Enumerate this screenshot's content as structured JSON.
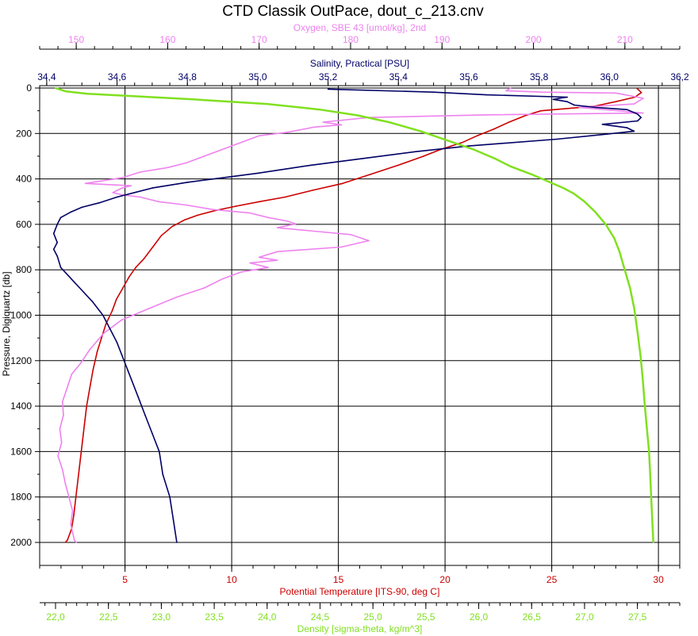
{
  "chart_data": {
    "type": "line",
    "title": "CTD Classik OutPace, dout_c_213.cnv",
    "grid": true,
    "colors": {
      "oxygen": "#ee82ee",
      "salinity": "#000066",
      "temperature": "#cc0000",
      "density": "#80e020"
    },
    "axes": {
      "y": {
        "label": "Pressure, Digiquartz [db]",
        "range": [
          0,
          2100
        ],
        "ticks": [
          0,
          200,
          400,
          600,
          800,
          1000,
          1200,
          1400,
          1600,
          1800,
          2000
        ],
        "reversed": true
      },
      "oxygen": {
        "label": "Oxygen, SBE 43 [umol/kg], 2nd",
        "range": [
          146,
          216
        ],
        "ticks": [
          150,
          160,
          170,
          180,
          190,
          200,
          210
        ],
        "tick_labels": [
          "150",
          "160",
          "170",
          "180",
          "190",
          "200",
          "210"
        ],
        "position": "top-outer"
      },
      "salinity": {
        "label": "Salinity, Practical [PSU]",
        "range": [
          34.38,
          36.2
        ],
        "ticks": [
          34.4,
          34.6,
          34.8,
          35.0,
          35.2,
          35.4,
          35.6,
          35.8,
          36.0,
          36.2
        ],
        "tick_labels": [
          "34,4",
          "34,6",
          "34,8",
          "35,0",
          "35,2",
          "35,4",
          "35,6",
          "35,8",
          "36,0",
          "36,2"
        ],
        "position": "top-inner"
      },
      "temperature": {
        "label": "Potential Temperature [ITS-90, deg C]",
        "range": [
          1.0,
          31.0
        ],
        "ticks": [
          5,
          10,
          15,
          20,
          25,
          30
        ],
        "tick_labels": [
          "5",
          "10",
          "15",
          "20",
          "25",
          "30"
        ],
        "position": "bottom-inner"
      },
      "density": {
        "label": "Density [sigma-theta, kg/m^3]",
        "range": [
          21.85,
          27.9
        ],
        "ticks": [
          22.0,
          22.5,
          23.0,
          23.5,
          24.0,
          24.5,
          25.0,
          25.5,
          26.0,
          26.5,
          27.0,
          27.5
        ],
        "tick_labels": [
          "22,0",
          "22,5",
          "23,0",
          "23,5",
          "24,0",
          "24,5",
          "25,0",
          "25,5",
          "26,0",
          "26,5",
          "27,0",
          "27,5"
        ],
        "position": "bottom-outer"
      }
    },
    "series": [
      {
        "key": "temperature",
        "axis": "temperature",
        "points": [
          [
            29.0,
            2
          ],
          [
            29.2,
            20
          ],
          [
            28.9,
            40
          ],
          [
            28.0,
            60
          ],
          [
            27.0,
            80
          ],
          [
            24.5,
            100
          ],
          [
            23.8,
            120
          ],
          [
            23.0,
            150
          ],
          [
            22.3,
            180
          ],
          [
            21.5,
            210
          ],
          [
            20.8,
            240
          ],
          [
            19.8,
            270
          ],
          [
            19.0,
            300
          ],
          [
            17.8,
            340
          ],
          [
            16.5,
            380
          ],
          [
            15.2,
            420
          ],
          [
            13.8,
            450
          ],
          [
            12.5,
            480
          ],
          [
            11.3,
            500
          ],
          [
            10.2,
            520
          ],
          [
            9.2,
            540
          ],
          [
            8.4,
            560
          ],
          [
            7.8,
            580
          ],
          [
            7.2,
            610
          ],
          [
            6.7,
            650
          ],
          [
            6.3,
            700
          ],
          [
            5.9,
            750
          ],
          [
            5.5,
            790
          ],
          [
            5.2,
            830
          ],
          [
            4.9,
            880
          ],
          [
            4.6,
            930
          ],
          [
            4.4,
            980
          ],
          [
            4.1,
            1040
          ],
          [
            3.9,
            1100
          ],
          [
            3.7,
            1160
          ],
          [
            3.5,
            1240
          ],
          [
            3.35,
            1320
          ],
          [
            3.2,
            1400
          ],
          [
            3.1,
            1480
          ],
          [
            3.0,
            1560
          ],
          [
            2.9,
            1640
          ],
          [
            2.8,
            1720
          ],
          [
            2.7,
            1800
          ],
          [
            2.6,
            1880
          ],
          [
            2.5,
            1940
          ],
          [
            2.3,
            1990
          ],
          [
            2.2,
            2000
          ]
        ]
      },
      {
        "key": "oxygen",
        "axis": "oxygen",
        "points": [
          [
            197.5,
            0
          ],
          [
            197.0,
            12
          ],
          [
            201.0,
            18
          ],
          [
            209.0,
            22
          ],
          [
            212.0,
            45
          ],
          [
            211.0,
            70
          ],
          [
            205.0,
            85
          ],
          [
            212.0,
            110
          ],
          [
            195.0,
            118
          ],
          [
            182.0,
            130
          ],
          [
            177.0,
            150
          ],
          [
            179.0,
            162
          ],
          [
            176.0,
            172
          ],
          [
            175.0,
            180
          ],
          [
            173.0,
            195
          ],
          [
            170.0,
            210
          ],
          [
            168.0,
            240
          ],
          [
            166.0,
            270
          ],
          [
            164.0,
            300
          ],
          [
            162.0,
            330
          ],
          [
            160.0,
            350
          ],
          [
            157.0,
            370
          ],
          [
            155.0,
            395
          ],
          [
            151.0,
            420
          ],
          [
            156.0,
            430
          ],
          [
            155.0,
            440
          ],
          [
            154.0,
            460
          ],
          [
            155.0,
            470
          ],
          [
            157.0,
            480
          ],
          [
            159.0,
            500
          ],
          [
            162.0,
            515
          ],
          [
            165.0,
            535
          ],
          [
            169.0,
            550
          ],
          [
            171.0,
            570
          ],
          [
            173.0,
            585
          ],
          [
            174.0,
            598
          ],
          [
            172.0,
            615
          ],
          [
            176.0,
            630
          ],
          [
            180.0,
            645
          ],
          [
            182.0,
            672
          ],
          [
            179.0,
            700
          ],
          [
            172.0,
            720
          ],
          [
            170.0,
            745
          ],
          [
            172.0,
            758
          ],
          [
            169.0,
            770
          ],
          [
            171.0,
            790
          ],
          [
            168.0,
            810
          ],
          [
            166.0,
            840
          ],
          [
            164.0,
            880
          ],
          [
            161.0,
            920
          ],
          [
            158.0,
            970
          ],
          [
            155.0,
            1020
          ],
          [
            153.0,
            1080
          ],
          [
            151.5,
            1150
          ],
          [
            150.5,
            1210
          ],
          [
            149.5,
            1260
          ],
          [
            149.0,
            1320
          ],
          [
            148.5,
            1380
          ],
          [
            148.6,
            1440
          ],
          [
            148.2,
            1500
          ],
          [
            148.4,
            1560
          ],
          [
            148.0,
            1620
          ],
          [
            148.5,
            1680
          ],
          [
            148.8,
            1740
          ],
          [
            149.2,
            1800
          ],
          [
            149.6,
            1860
          ],
          [
            149.4,
            1920
          ],
          [
            149.8,
            1990
          ],
          [
            150.0,
            2000
          ]
        ]
      },
      {
        "key": "salinity",
        "axis": "salinity",
        "points": [
          [
            35.2,
            5
          ],
          [
            35.5,
            18
          ],
          [
            35.65,
            30
          ],
          [
            35.88,
            40
          ],
          [
            35.84,
            50
          ],
          [
            35.88,
            60
          ],
          [
            35.9,
            75
          ],
          [
            35.96,
            85
          ],
          [
            36.05,
            95
          ],
          [
            36.08,
            115
          ],
          [
            36.09,
            130
          ],
          [
            36.08,
            145
          ],
          [
            35.98,
            160
          ],
          [
            36.05,
            175
          ],
          [
            36.07,
            190
          ],
          [
            35.98,
            205
          ],
          [
            35.85,
            225
          ],
          [
            35.6,
            255
          ],
          [
            35.45,
            280
          ],
          [
            35.3,
            310
          ],
          [
            35.15,
            340
          ],
          [
            35.0,
            375
          ],
          [
            34.9,
            395
          ],
          [
            34.8,
            415
          ],
          [
            34.7,
            440
          ],
          [
            34.65,
            460
          ],
          [
            34.6,
            480
          ],
          [
            34.55,
            505
          ],
          [
            34.5,
            525
          ],
          [
            34.47,
            545
          ],
          [
            34.44,
            570
          ],
          [
            34.43,
            600
          ],
          [
            34.42,
            640
          ],
          [
            34.43,
            680
          ],
          [
            34.42,
            710
          ],
          [
            34.43,
            740
          ],
          [
            34.44,
            790
          ],
          [
            34.47,
            840
          ],
          [
            34.5,
            890
          ],
          [
            34.53,
            940
          ],
          [
            34.56,
            1000
          ],
          [
            34.58,
            1060
          ],
          [
            34.6,
            1120
          ],
          [
            34.62,
            1200
          ],
          [
            34.64,
            1280
          ],
          [
            34.66,
            1360
          ],
          [
            34.68,
            1440
          ],
          [
            34.7,
            1520
          ],
          [
            34.72,
            1600
          ],
          [
            34.73,
            1700
          ],
          [
            34.75,
            1800
          ],
          [
            34.76,
            1900
          ],
          [
            34.77,
            2000
          ]
        ]
      },
      {
        "key": "density",
        "axis": "density",
        "points": [
          [
            22.0,
            0
          ],
          [
            22.1,
            15
          ],
          [
            22.3,
            25
          ],
          [
            22.7,
            35
          ],
          [
            23.3,
            50
          ],
          [
            24.0,
            70
          ],
          [
            24.5,
            95
          ],
          [
            24.85,
            120
          ],
          [
            25.15,
            150
          ],
          [
            25.45,
            190
          ],
          [
            25.7,
            230
          ],
          [
            25.95,
            270
          ],
          [
            26.15,
            310
          ],
          [
            26.3,
            345
          ],
          [
            26.5,
            380
          ],
          [
            26.65,
            410
          ],
          [
            26.8,
            440
          ],
          [
            26.9,
            465
          ],
          [
            27.0,
            500
          ],
          [
            27.1,
            545
          ],
          [
            27.2,
            600
          ],
          [
            27.28,
            660
          ],
          [
            27.33,
            720
          ],
          [
            27.38,
            800
          ],
          [
            27.43,
            880
          ],
          [
            27.47,
            970
          ],
          [
            27.5,
            1070
          ],
          [
            27.53,
            1180
          ],
          [
            27.55,
            1280
          ],
          [
            27.57,
            1400
          ],
          [
            27.59,
            1500
          ],
          [
            27.61,
            1600
          ],
          [
            27.62,
            1700
          ],
          [
            27.63,
            1800
          ],
          [
            27.64,
            1900
          ],
          [
            27.65,
            2000
          ]
        ]
      }
    ]
  }
}
